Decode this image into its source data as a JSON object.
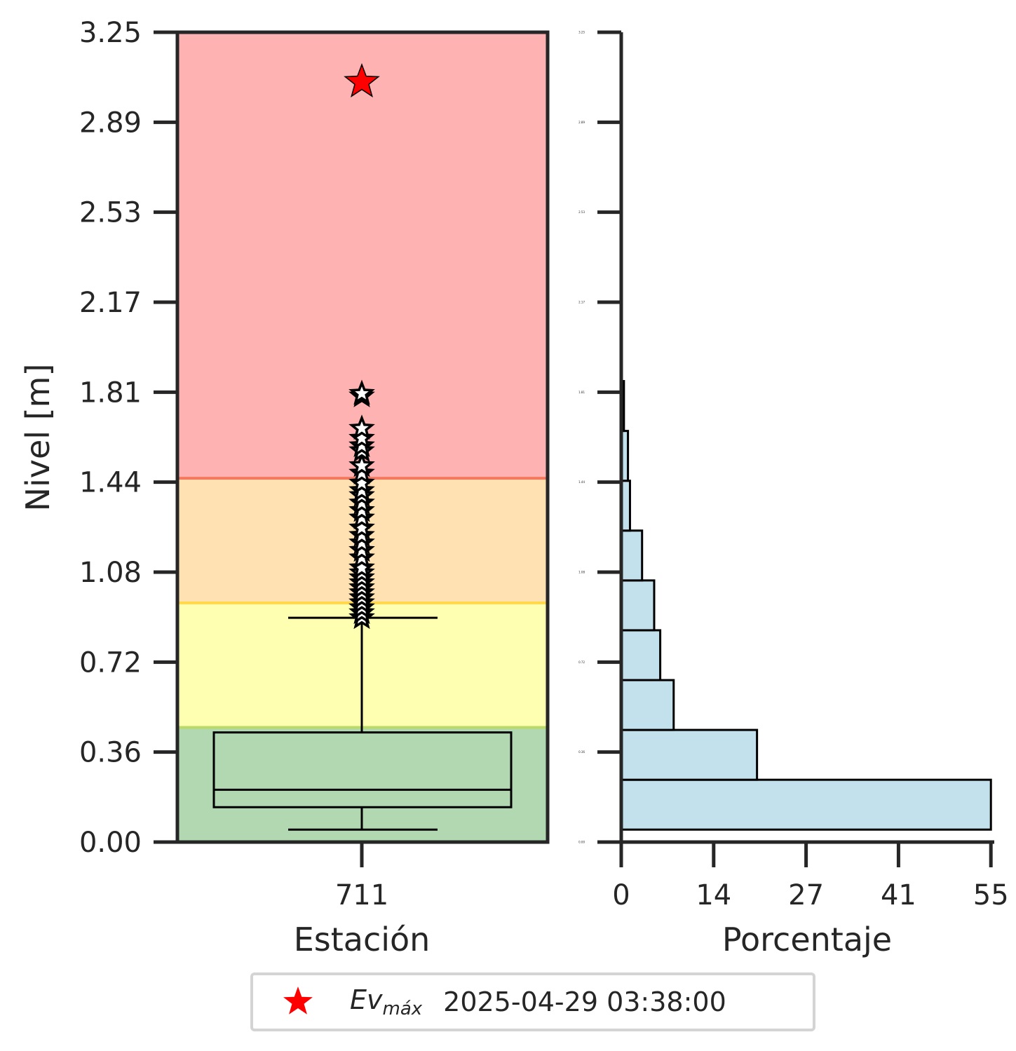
{
  "chart_data": [
    {
      "type": "box",
      "ylabel": "Nivel [m]",
      "xlabel": "Estación",
      "categories": [
        "711"
      ],
      "ylim": [
        0,
        3.25
      ],
      "yticks": [
        "0.00",
        "0.36",
        "0.72",
        "1.08",
        "1.44",
        "1.81",
        "2.17",
        "2.53",
        "2.89",
        "3.25"
      ],
      "bands": [
        {
          "from": 0.0,
          "to": 0.46,
          "color": "#b2d8b2"
        },
        {
          "from": 0.46,
          "to": 0.96,
          "color": "#ffffb2"
        },
        {
          "from": 0.96,
          "to": 1.46,
          "color": "#ffe1b2"
        },
        {
          "from": 1.46,
          "to": 3.25,
          "color": "#ffb2b2"
        }
      ],
      "band_lines": [
        {
          "y": 0.46,
          "color": "#b9d96a"
        },
        {
          "y": 0.96,
          "color": "#ffd84a"
        },
        {
          "y": 1.46,
          "color": "#f4785e"
        }
      ],
      "box": {
        "whisker_low": 0.05,
        "q1": 0.14,
        "median": 0.21,
        "q3": 0.44,
        "whisker_high": 0.9
      },
      "outliers": [
        0.9,
        0.92,
        0.94,
        0.96,
        0.98,
        1.0,
        1.02,
        1.04,
        1.06,
        1.08,
        1.1,
        1.14,
        1.17,
        1.2,
        1.23,
        1.26,
        1.3,
        1.33,
        1.36,
        1.39,
        1.41,
        1.44,
        1.48,
        1.51,
        1.57,
        1.59,
        1.62,
        1.66,
        1.79,
        1.8
      ],
      "max_event": {
        "value": 3.05,
        "color": "#ff0000"
      }
    },
    {
      "type": "histogram",
      "orientation": "horizontal",
      "xlabel": "Porcentaje",
      "xlim": [
        0,
        55.5
      ],
      "xticks": [
        "0",
        "14",
        "27",
        "41",
        "55"
      ],
      "xtick_values": [
        0,
        13.75,
        27.5,
        41.25,
        55
      ],
      "ylim": [
        0,
        3.25
      ],
      "ytick_labels": [
        "0.00",
        "0.36",
        "0.72",
        "1.08",
        "1.44",
        "1.81",
        "2.17",
        "2.53",
        "2.89",
        "3.25"
      ],
      "bins": [
        {
          "from": 0.05,
          "to": 0.25,
          "value": 55.0
        },
        {
          "from": 0.25,
          "to": 0.45,
          "value": 20.2
        },
        {
          "from": 0.45,
          "to": 0.65,
          "value": 7.8
        },
        {
          "from": 0.65,
          "to": 0.85,
          "value": 5.8
        },
        {
          "from": 0.85,
          "to": 1.05,
          "value": 4.9
        },
        {
          "from": 1.05,
          "to": 1.25,
          "value": 3.1
        },
        {
          "from": 1.25,
          "to": 1.45,
          "value": 1.3
        },
        {
          "from": 1.45,
          "to": 1.65,
          "value": 1.0
        },
        {
          "from": 1.65,
          "to": 1.85,
          "value": 0.4
        }
      ],
      "bar_color": "#c3e1ec"
    }
  ],
  "legend": {
    "label_main": "Ev",
    "label_sub": "máx",
    "date": "2025-04-29 03:38:00"
  }
}
